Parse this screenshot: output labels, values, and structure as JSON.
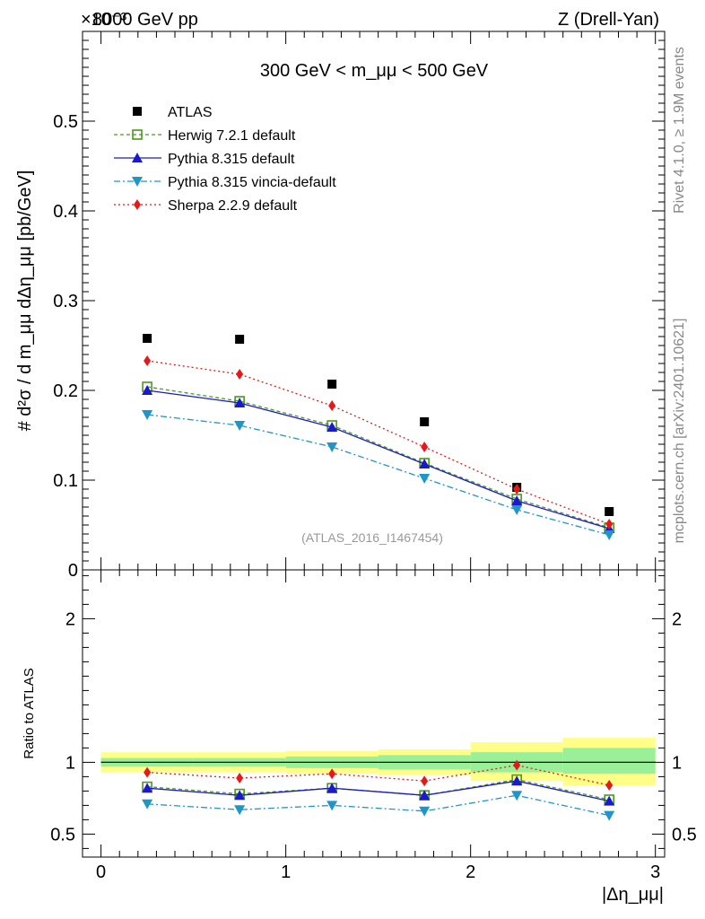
{
  "header": {
    "left": "8000 GeV pp",
    "right": "Z (Drell-Yan)",
    "exponent": "×10⁻³",
    "side_top": "Rivet 4.1.0, ≥ 1.9M events",
    "side_bottom": "mcplots.cern.ch [arXiv:2401.10621]",
    "analysis_id": "(ATLAS_2016_I1467454)"
  },
  "chart_data": [
    {
      "type": "line",
      "title": "300 GeV < m_μμ < 500 GeV",
      "ylabel": "# d²σ / d m_μμ dΔη_μμ [pb/GeV]",
      "xlabel": "|Δη_μμ|",
      "xlim": [
        -0.1,
        3.05
      ],
      "ylim": [
        0,
        0.6
      ],
      "y_scale_note": "×10⁻³",
      "yticks": [
        0,
        0.1,
        0.2,
        0.3,
        0.4,
        0.5
      ],
      "ytick_labels": [
        "0",
        "0.1",
        "0.2",
        "0.3",
        "0.4",
        "0.5"
      ],
      "x": [
        0.25,
        0.75,
        1.25,
        1.75,
        2.25,
        2.75
      ],
      "series": [
        {
          "name": "ATLAS",
          "values": [
            0.258,
            0.257,
            0.207,
            0.165,
            0.092,
            0.065
          ],
          "color": "#000000",
          "marker": "square"
        },
        {
          "name": "Herwig 7.2.1 default",
          "values": [
            0.204,
            0.188,
            0.161,
            0.119,
            0.079,
            0.047
          ],
          "color": "#4a9a1c",
          "marker": "open-square",
          "dash": "4,3"
        },
        {
          "name": "Pythia 8.315 default",
          "values": [
            0.2,
            0.186,
            0.159,
            0.118,
            0.077,
            0.046
          ],
          "color": "#1a1acc",
          "marker": "triangle-up",
          "dash": ""
        },
        {
          "name": "Pythia 8.315 vincia-default",
          "values": [
            0.173,
            0.161,
            0.137,
            0.102,
            0.067,
            0.039
          ],
          "color": "#1e96c8",
          "marker": "triangle-down",
          "dash": "7,3,2,3"
        },
        {
          "name": "Sherpa 2.2.9 default",
          "values": [
            0.233,
            0.218,
            0.183,
            0.137,
            0.09,
            0.051
          ],
          "color": "#e81818",
          "marker": "diamond",
          "dash": "2,3"
        }
      ]
    },
    {
      "type": "line",
      "title": "",
      "ylabel": "Ratio to ATLAS",
      "xlabel": "|Δη_μμ|",
      "xlim": [
        -0.1,
        3.05
      ],
      "ylim": [
        0.34,
        2.34
      ],
      "yticks": [
        0.5,
        1,
        2
      ],
      "ytick_labels": [
        "0.5",
        "1",
        "2"
      ],
      "xticks": [
        0,
        1,
        2,
        3
      ],
      "xtick_labels": [
        "0",
        "1",
        "2",
        "3"
      ],
      "bins": [
        [
          0,
          0.5
        ],
        [
          0.5,
          1
        ],
        [
          1,
          1.5
        ],
        [
          1.5,
          2
        ],
        [
          2,
          2.5
        ],
        [
          2.5,
          3
        ]
      ],
      "band_total": [
        [
          0.93,
          1.07
        ],
        [
          0.93,
          1.07
        ],
        [
          0.92,
          1.08
        ],
        [
          0.91,
          1.09
        ],
        [
          0.87,
          1.14
        ],
        [
          0.84,
          1.17
        ]
      ],
      "band_stat": [
        [
          0.97,
          1.03
        ],
        [
          0.97,
          1.03
        ],
        [
          0.96,
          1.04
        ],
        [
          0.95,
          1.05
        ],
        [
          0.93,
          1.07
        ],
        [
          0.92,
          1.1
        ]
      ],
      "x": [
        0.25,
        0.75,
        1.25,
        1.75,
        2.25,
        2.75
      ],
      "series": [
        {
          "name": "Herwig 7.2.1 default",
          "values": [
            0.83,
            0.78,
            0.82,
            0.77,
            0.88,
            0.74
          ],
          "color": "#4a9a1c",
          "marker": "open-square",
          "dash": "4,3"
        },
        {
          "name": "Pythia 8.315 default",
          "values": [
            0.82,
            0.77,
            0.82,
            0.77,
            0.87,
            0.73
          ],
          "color": "#1a1acc",
          "marker": "triangle-up",
          "dash": ""
        },
        {
          "name": "Pythia 8.315 vincia-default",
          "values": [
            0.71,
            0.67,
            0.7,
            0.66,
            0.77,
            0.63
          ],
          "color": "#1e96c8",
          "marker": "triangle-down",
          "dash": "7,3,2,3"
        },
        {
          "name": "Sherpa 2.2.9 default",
          "values": [
            0.93,
            0.89,
            0.92,
            0.87,
            0.98,
            0.84
          ],
          "color": "#e81818",
          "marker": "diamond",
          "dash": "2,3"
        }
      ]
    }
  ]
}
